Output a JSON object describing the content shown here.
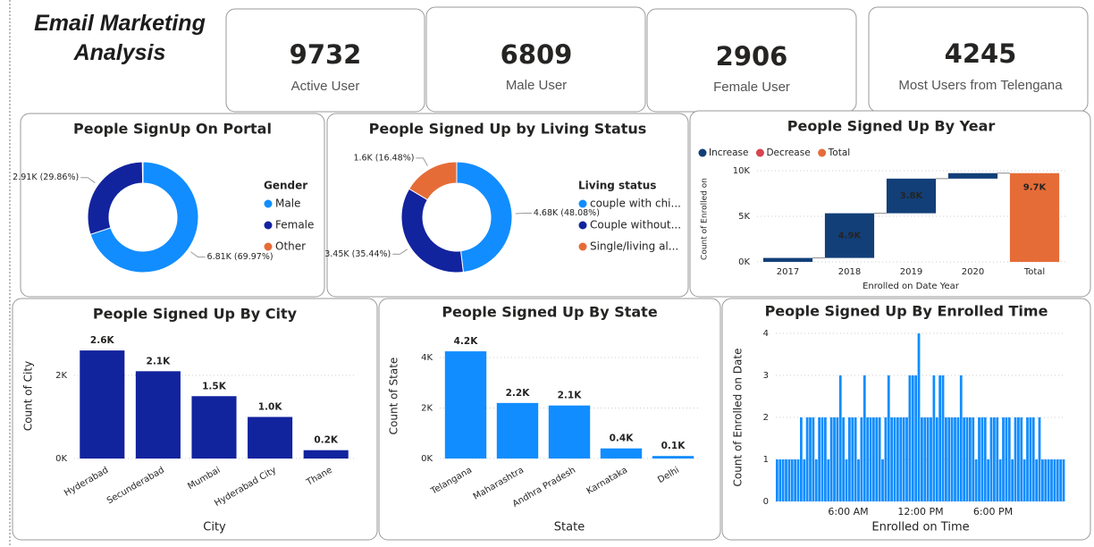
{
  "title": "Email Marketing Analysis",
  "cards": [
    {
      "value": 9732,
      "label": "Active User"
    },
    {
      "value": 6809,
      "label": "Male User"
    },
    {
      "value": 2906,
      "label": "Female User"
    },
    {
      "value": 4245,
      "label": "Most Users from Telengana"
    }
  ],
  "chart_data": [
    {
      "type": "donut",
      "title": "People SignUp On Portal",
      "legend_title": "Gender",
      "categories": [
        "Male",
        "Female",
        "Other"
      ],
      "values": [
        6809,
        2906,
        17
      ],
      "value_labels": [
        "6.81K (69.97%)",
        "2.91K (29.86%)",
        null
      ],
      "colors": [
        "#118dff",
        "#12239e",
        "#e66c37"
      ]
    },
    {
      "type": "donut",
      "title": "People Signed Up by Living Status",
      "legend_title": "Living status",
      "categories": [
        "couple with chi...",
        "Couple without...",
        "Single/living al..."
      ],
      "values": [
        4680,
        3450,
        1600
      ],
      "value_labels": [
        "4.68K (48.08%)",
        "3.45K (35.44%)",
        "1.6K (16.48%)"
      ],
      "colors": [
        "#118dff",
        "#12239e",
        "#e66c37"
      ]
    },
    {
      "type": "waterfall",
      "title": "People Signed Up By Year",
      "x_label": "Enrolled on Date Year",
      "y_label": "Count of Enrolled on",
      "legend": [
        {
          "name": "Increase",
          "color": "#123f78"
        },
        {
          "name": "Decrease",
          "color": "#d64550"
        },
        {
          "name": "Total",
          "color": "#e66c37"
        }
      ],
      "categories": [
        "2017",
        "2018",
        "2019",
        "2020",
        "Total"
      ],
      "values": [
        432,
        4900,
        3800,
        600,
        9732
      ],
      "value_labels": [
        null,
        "4.9K",
        "3.8K",
        null,
        "9.7K"
      ],
      "ylim": [
        0,
        10000
      ],
      "yticks": [
        {
          "value": 0,
          "label": "0K"
        },
        {
          "value": 5000,
          "label": "5K"
        },
        {
          "value": 10000,
          "label": "10K"
        }
      ],
      "grid": true
    },
    {
      "type": "bar",
      "title": "People Signed Up By City",
      "x_label": "City",
      "y_label": "Count of City",
      "color": "#12239e",
      "categories": [
        "Hyderabad",
        "Secunderabad",
        "Mumbai",
        "Hyderabad City",
        "Thane"
      ],
      "values": [
        2600,
        2100,
        1500,
        1000,
        200
      ],
      "value_labels": [
        "2.6K",
        "2.1K",
        "1.5K",
        "1.0K",
        "0.2K"
      ],
      "ylim": [
        0,
        3000
      ],
      "yticks": [
        {
          "value": 0,
          "label": "0K"
        },
        {
          "value": 2000,
          "label": "2K"
        }
      ],
      "grid": true
    },
    {
      "type": "bar",
      "title": "People Signed Up By State",
      "x_label": "State",
      "y_label": "Count of State",
      "color": "#118dff",
      "categories": [
        "Telangana",
        "Maharashtra",
        "Andhra Pradesh",
        "Karnataka",
        "Delhi"
      ],
      "values": [
        4245,
        2200,
        2100,
        400,
        100
      ],
      "value_labels": [
        "4.2K",
        "2.2K",
        "2.1K",
        "0.4K",
        "0.1K"
      ],
      "ylim": [
        0,
        5000
      ],
      "yticks": [
        {
          "value": 0,
          "label": "0K"
        },
        {
          "value": 2000,
          "label": "2K"
        },
        {
          "value": 4000,
          "label": "4K"
        }
      ],
      "grid": true
    },
    {
      "type": "timecolumn",
      "title": "People Signed Up By Enrolled Time",
      "x_label": "Enrolled on Time",
      "y_label": "Count of Enrolled on Date",
      "color": "#118dff",
      "x": [
        0,
        0.25,
        0.5,
        0.75,
        1,
        1.25,
        1.5,
        1.75,
        2,
        2.25,
        2.5,
        2.75,
        3,
        3.25,
        3.5,
        3.75,
        4,
        4.25,
        4.5,
        4.75,
        5,
        5.25,
        5.5,
        5.75,
        6,
        6.25,
        6.5,
        6.75,
        7,
        7.25,
        7.5,
        7.75,
        8,
        8.25,
        8.5,
        8.75,
        9,
        9.25,
        9.5,
        9.75,
        10,
        10.25,
        10.5,
        10.75,
        11,
        11.25,
        11.5,
        11.75,
        12,
        12.25,
        12.5,
        12.75,
        13,
        13.25,
        13.5,
        13.75,
        14,
        14.25,
        14.5,
        14.75,
        15,
        15.25,
        15.5,
        15.75,
        16,
        16.25,
        16.5,
        16.75,
        17,
        17.25,
        17.5,
        17.75,
        18,
        18.25,
        18.5,
        18.75,
        19,
        19.25,
        19.5,
        19.75,
        20,
        20.25,
        20.5,
        20.75,
        21,
        21.25,
        21.5,
        21.75,
        22,
        22.25,
        22.5,
        22.75,
        23,
        23.25,
        23.5,
        23.75
      ],
      "values": [
        1,
        1,
        1,
        1,
        1,
        1,
        1,
        1,
        2,
        1,
        2,
        2,
        2,
        1,
        2,
        2,
        2,
        1,
        2,
        2,
        2,
        3,
        2,
        1,
        2,
        2,
        2,
        1,
        2,
        3,
        2,
        2,
        2,
        2,
        2,
        1,
        2,
        3,
        2,
        2,
        2,
        2,
        2,
        2,
        3,
        3,
        3,
        4,
        2,
        2,
        2,
        2,
        3,
        2,
        3,
        3,
        2,
        2,
        2,
        2,
        2,
        3,
        2,
        2,
        2,
        2,
        1,
        2,
        2,
        2,
        1,
        2,
        2,
        2,
        1,
        2,
        2,
        2,
        1,
        2,
        2,
        2,
        1,
        2,
        2,
        2,
        1,
        2,
        1,
        1,
        1,
        1,
        1,
        1,
        1,
        1
      ],
      "xlim": [
        0,
        24
      ],
      "xticks": [
        {
          "value": 6,
          "label": "6:00 AM"
        },
        {
          "value": 12,
          "label": "12:00 PM"
        },
        {
          "value": 18,
          "label": "6:00 PM"
        }
      ],
      "ylim": [
        0,
        4
      ],
      "yticks": [
        0,
        1,
        2,
        3,
        4
      ],
      "grid": true
    }
  ]
}
